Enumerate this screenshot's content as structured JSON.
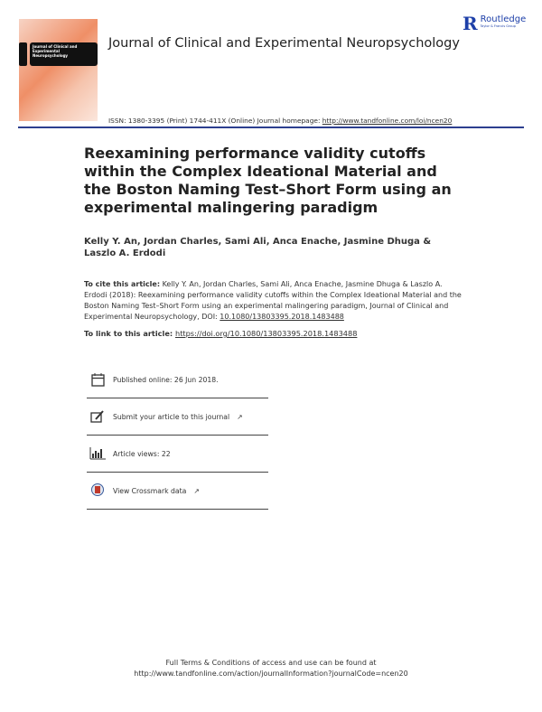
{
  "header": {
    "cover_title": "Journal of Clinical and Experimental Neuropsychology",
    "journal_title": "Journal of Clinical and Experimental Neuropsychology",
    "publisher": "Routledge",
    "publisher_tagline": "Taylor & Francis Group",
    "issn": "ISSN: 1380-3395 (Print) 1744-411X (Online) Journal homepage: ",
    "homepage_url": "http://www.tandfonline.com/loi/ncen20",
    "rule_color": "#2c3f8f"
  },
  "article": {
    "title": "Reexamining performance validity cutoffs within the Complex Ideational Material and the Boston Naming Test–Short Form using an experimental malingering paradigm",
    "authors": "Kelly Y. An, Jordan Charles, Sami Ali, Anca Enache, Jasmine Dhuga & Laszlo A. Erdodi",
    "cite_label": "To cite this article:",
    "cite_text": " Kelly Y. An, Jordan Charles, Sami Ali, Anca Enache, Jasmine Dhuga & Laszlo A. Erdodi (2018): Reexamining performance validity cutoffs within the Complex Ideational Material and the Boston Naming Test–Short Form using an experimental malingering paradigm, Journal of Clinical and Experimental Neuropsychology, DOI: ",
    "doi": "10.1080/13803395.2018.1483488",
    "link_label": "To link to this article: ",
    "link_url": "https://doi.org/10.1080/13803395.2018.1483488"
  },
  "info_boxes": [
    {
      "icon": "calendar-icon",
      "text": "Published online: 26 Jun 2018."
    },
    {
      "icon": "edit-icon",
      "text": "Submit your article to this journal"
    },
    {
      "icon": "bar-chart-icon",
      "text": "Article views: 22"
    },
    {
      "icon": "crossmark-icon",
      "text": "View Crossmark data"
    }
  ],
  "footer": {
    "line1": "Full Terms & Conditions of access and use can be found at",
    "line2": "http://www.tandfonline.com/action/journalInformation?journalCode=ncen20"
  }
}
